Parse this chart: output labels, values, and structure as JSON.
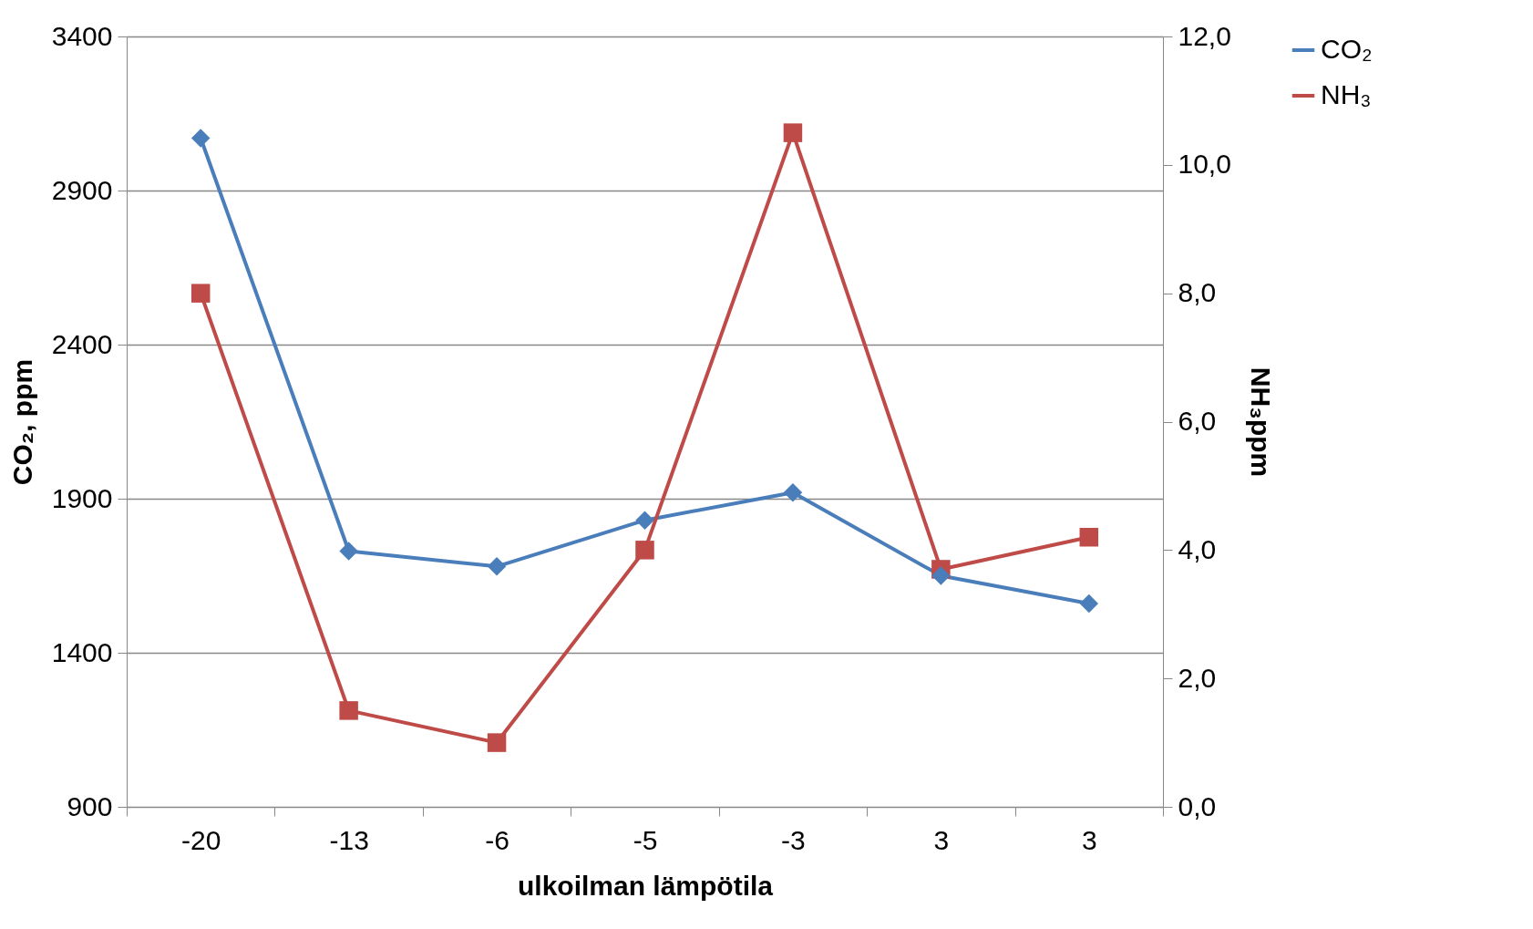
{
  "chart_data": {
    "type": "line",
    "xlabel": "ulkoilman lämpötila",
    "ylabel": "CO₂, ppm",
    "y2label": "NH₃ppm",
    "categories": [
      "-20",
      "-13",
      "-6",
      "-5",
      "-3",
      "3",
      "3"
    ],
    "series": [
      {
        "name": "CO₂",
        "color": "#4a7ebb",
        "marker": "diamond",
        "values": [
          3070,
          1730,
          1680,
          1830,
          1920,
          1650,
          1560
        ]
      },
      {
        "name": "NH₃",
        "color": "#be4b48",
        "marker": "square",
        "axis": "y2",
        "values": [
          8.0,
          1.5,
          1.0,
          4.0,
          10.5,
          3.7,
          4.2
        ]
      }
    ],
    "ylim": [
      900,
      3400
    ],
    "yticks": [
      900,
      1400,
      1900,
      2400,
      2900,
      3400
    ],
    "y2lim": [
      0,
      12
    ],
    "y2ticks": [
      {
        "value": 0,
        "label": "0,0"
      },
      {
        "value": 2,
        "label": "2,0"
      },
      {
        "value": 4,
        "label": "4,0"
      },
      {
        "value": 6,
        "label": "6,0"
      },
      {
        "value": 8,
        "label": "8,0"
      },
      {
        "value": 10,
        "label": "10,0"
      },
      {
        "value": 12,
        "label": "12,0"
      }
    ],
    "grid": "y",
    "legend": "right",
    "line_style": "solid"
  }
}
